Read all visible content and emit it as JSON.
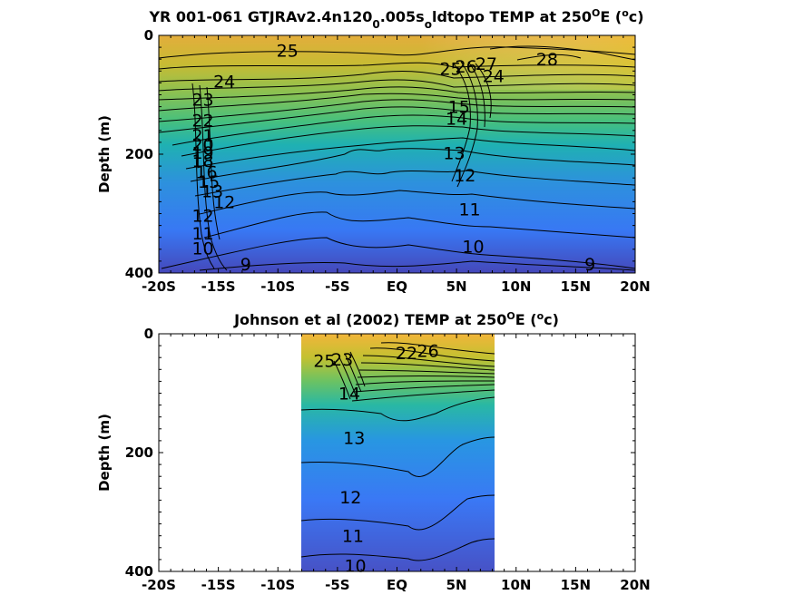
{
  "chart_data": [
    {
      "type": "heatmap",
      "title": "YR 001-061 GTJRAv2.4n120_0.005s_oldtopo TEMP at 250°E (°c)",
      "title_parts": [
        "YR 001-061 GTJRAv2.4n120",
        "0",
        ".005s",
        "o",
        "ldtopo TEMP at 250",
        "O",
        "E (",
        "o",
        "c)"
      ],
      "xlabel": "",
      "ylabel": "Depth (m)",
      "xlim": [
        -20,
        20
      ],
      "ylim": [
        400,
        0
      ],
      "x_tick_values": [
        -20,
        -15,
        -10,
        -5,
        0,
        5,
        10,
        15,
        20
      ],
      "x_ticks": [
        "-20S",
        "-15S",
        "-10S",
        "-5S",
        "EQ",
        "5N",
        "10N",
        "15N",
        "20N"
      ],
      "y_tick_values": [
        0,
        200,
        400
      ],
      "y_ticks": [
        "0",
        "200",
        "400"
      ],
      "data_extent_x": [
        -20,
        20
      ],
      "contour_levels": [
        9,
        10,
        11,
        12,
        13,
        14,
        15,
        16,
        17,
        18,
        19,
        20,
        21,
        22,
        23,
        24,
        25,
        26,
        27,
        28
      ],
      "contour_labels": [
        {
          "text": "25",
          "x": -9.2,
          "depth": 25
        },
        {
          "text": "24",
          "x": -14.5,
          "depth": 77
        },
        {
          "text": "23",
          "x": -16.3,
          "depth": 108
        },
        {
          "text": "22",
          "x": -16.3,
          "depth": 143
        },
        {
          "text": "21",
          "x": -16.3,
          "depth": 168
        },
        {
          "text": "20",
          "x": -16.3,
          "depth": 183
        },
        {
          "text": "19",
          "x": -16.3,
          "depth": 197
        },
        {
          "text": "18",
          "x": -16.3,
          "depth": 211
        },
        {
          "text": "16",
          "x": -16.0,
          "depth": 230
        },
        {
          "text": "15",
          "x": -15.8,
          "depth": 246
        },
        {
          "text": "13",
          "x": -15.5,
          "depth": 262
        },
        {
          "text": "12",
          "x": -14.5,
          "depth": 280
        },
        {
          "text": "12",
          "x": -16.3,
          "depth": 303
        },
        {
          "text": "11",
          "x": -16.3,
          "depth": 333
        },
        {
          "text": "10",
          "x": -16.3,
          "depth": 358
        },
        {
          "text": "9",
          "x": -12.7,
          "depth": 385
        },
        {
          "text": "25",
          "x": 4.5,
          "depth": 56
        },
        {
          "text": "26",
          "x": 5.8,
          "depth": 52
        },
        {
          "text": "27",
          "x": 7.5,
          "depth": 47
        },
        {
          "text": "28",
          "x": 12.6,
          "depth": 40
        },
        {
          "text": "24",
          "x": 8.1,
          "depth": 68
        },
        {
          "text": "15",
          "x": 5.2,
          "depth": 120
        },
        {
          "text": "14",
          "x": 5.0,
          "depth": 140
        },
        {
          "text": "13",
          "x": 4.8,
          "depth": 198
        },
        {
          "text": "12",
          "x": 5.7,
          "depth": 235
        },
        {
          "text": "11",
          "x": 6.1,
          "depth": 292
        },
        {
          "text": "10",
          "x": 6.4,
          "depth": 355
        },
        {
          "text": "9",
          "x": 16.2,
          "depth": 385
        }
      ]
    },
    {
      "type": "heatmap",
      "title": "Johnson et al (2002) TEMP at 250°E (°c)",
      "title_parts": [
        "Johnson et al (2002) TEMP at 250",
        "O",
        "E (",
        "o",
        "c)"
      ],
      "xlabel": "",
      "ylabel": "Depth (m)",
      "xlim": [
        -20,
        20
      ],
      "ylim": [
        400,
        0
      ],
      "x_tick_values": [
        -20,
        -15,
        -10,
        -5,
        0,
        5,
        10,
        15,
        20
      ],
      "x_ticks": [
        "-20S",
        "-15S",
        "-10S",
        "-5S",
        "EQ",
        "5N",
        "10N",
        "15N",
        "20N"
      ],
      "y_tick_values": [
        0,
        200,
        400
      ],
      "y_ticks": [
        "0",
        "200",
        "400"
      ],
      "data_extent_x": [
        -8,
        8.2
      ],
      "contour_levels": [
        10,
        11,
        12,
        13,
        14,
        15,
        16,
        17,
        18,
        19,
        20,
        21,
        22,
        23,
        24,
        25,
        26
      ],
      "contour_labels": [
        {
          "text": "25",
          "x": -6.1,
          "depth": 45
        },
        {
          "text": "23",
          "x": -4.6,
          "depth": 43
        },
        {
          "text": "14",
          "x": -4.0,
          "depth": 100
        },
        {
          "text": "22",
          "x": 0.8,
          "depth": 32
        },
        {
          "text": "26",
          "x": 2.6,
          "depth": 28
        },
        {
          "text": "13",
          "x": -3.6,
          "depth": 175
        },
        {
          "text": "12",
          "x": -3.9,
          "depth": 275
        },
        {
          "text": "11",
          "x": -3.7,
          "depth": 340
        },
        {
          "text": "10",
          "x": -3.5,
          "depth": 390
        }
      ]
    }
  ]
}
